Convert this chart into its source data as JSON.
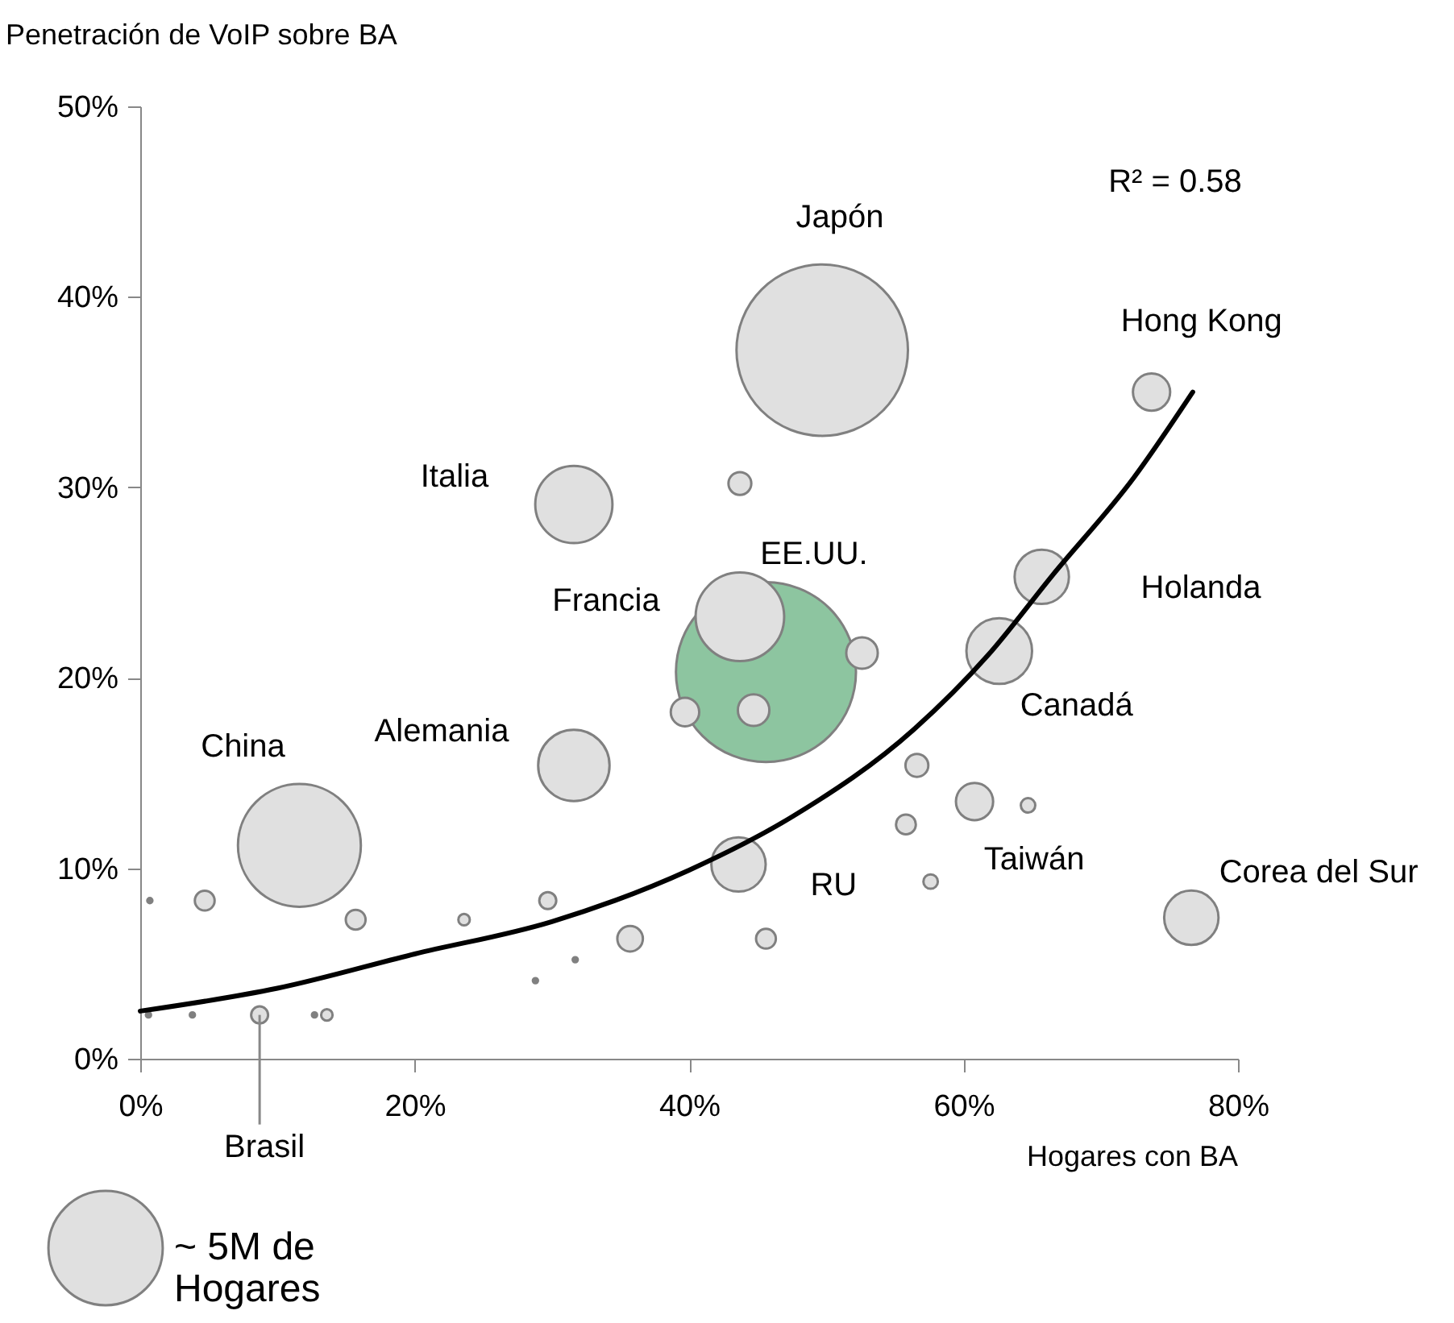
{
  "chart_data": {
    "type": "bubble",
    "xlabel": "Hogares con BA",
    "ylabel": "Penetración de VoIP sobre BA",
    "xlim": [
      0,
      80
    ],
    "ylim": [
      0,
      50
    ],
    "xticks": [
      {
        "value": 0,
        "label": "0%"
      },
      {
        "value": 20,
        "label": "20%"
      },
      {
        "value": 40,
        "label": "40%"
      },
      {
        "value": 60,
        "label": "60%"
      },
      {
        "value": 80,
        "label": "80%"
      }
    ],
    "yticks": [
      {
        "value": 0,
        "label": "0%"
      },
      {
        "value": 10,
        "label": "10%"
      },
      {
        "value": 20,
        "label": "20%"
      },
      {
        "value": 30,
        "label": "30%"
      },
      {
        "value": 40,
        "label": "40%"
      },
      {
        "value": 50,
        "label": "50%"
      }
    ],
    "grid": false,
    "size_legend": [
      {
        "value": 5,
        "label": "~ 5M de Hogares"
      }
    ],
    "series": [
      {
        "x": [
          49.7,
          73.7,
          31.6,
          43.7,
          43.7,
          45.6,
          52.6,
          39.7,
          44.7,
          65.7,
          62.6,
          31.6,
          11.6,
          43.6,
          76.6,
          60.8,
          56.6,
          55.8,
          64.7,
          57.6,
          45.6,
          0.7,
          4.7,
          15.7,
          23.6,
          29.7,
          31.7,
          28.8,
          35.7,
          0.6,
          3.8,
          8.7,
          12.7,
          13.6
        ],
        "values": [
          37.2,
          35.0,
          29.1,
          30.2,
          23.2,
          20.3,
          21.3,
          18.2,
          18.3,
          25.3,
          21.4,
          15.4,
          11.2,
          10.2,
          7.4,
          13.5,
          15.4,
          12.3,
          13.3,
          9.3,
          6.3,
          8.3,
          8.3,
          7.3,
          7.3,
          8.3,
          5.2,
          4.1,
          6.3,
          2.3,
          2.3,
          2.3,
          2.3,
          2.3
        ],
        "sizes": [
          11.25,
          0.53,
          2.28,
          0.2,
          3.0,
          12.4,
          0.38,
          0.31,
          0.38,
          1.13,
          1.65,
          1.95,
          5.78,
          1.13,
          1.13,
          0.53,
          0.2,
          0.15,
          0.08,
          0.08,
          0.15,
          0.01,
          0.15,
          0.15,
          0.05,
          0.11,
          0.01,
          0.01,
          0.25,
          0.01,
          0.01,
          0.11,
          0.01,
          0.05
        ],
        "colors": [
          "#e0e0e0",
          "#e0e0e0",
          "#e0e0e0",
          "#e0e0e0",
          "#e0e0e0",
          "#8dc5a0",
          "#e0e0e0",
          "#e0e0e0",
          "#e0e0e0",
          "#e0e0e0",
          "#e0e0e0",
          "#e0e0e0",
          "#e0e0e0",
          "#e0e0e0",
          "#e0e0e0",
          "#e0e0e0",
          "#e0e0e0",
          "#e0e0e0",
          "#e0e0e0",
          "#e0e0e0",
          "#e0e0e0",
          "#808080",
          "#e0e0e0",
          "#e0e0e0",
          "#e0e0e0",
          "#e0e0e0",
          "#808080",
          "#808080",
          "#e0e0e0",
          "#808080",
          "#808080",
          "#e0e0e0",
          "#808080",
          "#e0e0e0"
        ]
      },
      {
        "type": "line",
        "color": "#000000",
        "line_style": "solid",
        "x": [
          0,
          10,
          20,
          30,
          40,
          47.5,
          56.4,
          61.8,
          66.5,
          72.4,
          76.7
        ],
        "values": [
          2.5,
          3.7,
          5.5,
          7.2,
          9.9,
          12.7,
          17.3,
          21.2,
          25.4,
          30.5,
          35.0
        ]
      }
    ],
    "annotations": [
      "Japón",
      {
        "text": "Hong Kong",
        "x": 73.7,
        "y": 35.0
      },
      {
        "text": "Italia",
        "x": 31.6,
        "y": 29.1
      },
      "EE.UU.",
      {
        "text": "Francia",
        "x": 43.7,
        "y": 23.2
      },
      "Holanda",
      {
        "text": "Canadá",
        "x": 62.6,
        "y": 21.4
      },
      {
        "text": "Alemania",
        "x": 31.6,
        "y": 15.4
      },
      {
        "text": "China",
        "x": 11.6,
        "y": 11.2
      },
      {
        "text": "Taiwán",
        "x": 60.8,
        "y": 13.5
      },
      {
        "text": "RU",
        "x": 43.6,
        "y": 10.2
      },
      {
        "text": "Corea del Sur",
        "x": 76.6,
        "y": 7.4
      },
      {
        "text": "Brasil",
        "x": 8.7,
        "y": 2.3
      },
      "R² = 0.58"
    ]
  }
}
